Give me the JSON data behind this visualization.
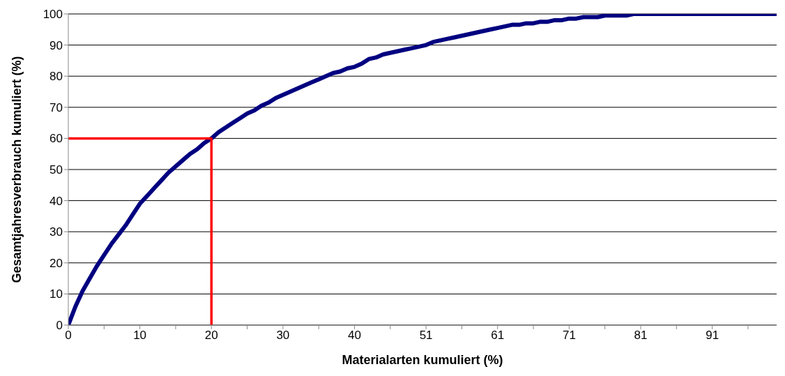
{
  "chart_data": {
    "type": "line",
    "xlabel": "Materialarten kumuliert (%)",
    "ylabel": "Gesamtjahresverbrauch kumuliert (%)",
    "categories": [
      "0",
      null,
      null,
      null,
      null,
      null,
      null,
      null,
      null,
      null,
      "10",
      null,
      null,
      null,
      null,
      null,
      null,
      null,
      null,
      null,
      "20",
      null,
      null,
      null,
      null,
      null,
      null,
      null,
      null,
      null,
      "30",
      null,
      null,
      null,
      null,
      null,
      null,
      null,
      null,
      null,
      "40",
      null,
      null,
      null,
      null,
      null,
      null,
      null,
      null,
      null,
      "51",
      null,
      null,
      null,
      null,
      null,
      null,
      null,
      null,
      null,
      "61",
      null,
      null,
      null,
      null,
      null,
      null,
      null,
      null,
      null,
      "71",
      null,
      null,
      null,
      null,
      null,
      null,
      null,
      null,
      null,
      "81",
      null,
      null,
      null,
      null,
      null,
      null,
      null,
      null,
      null,
      "91",
      null,
      null,
      null,
      null,
      null,
      null,
      null,
      null,
      null
    ],
    "ylim": [
      0,
      100
    ],
    "yticks": [
      0,
      10,
      20,
      30,
      40,
      50,
      60,
      70,
      80,
      90,
      100
    ],
    "grid": "y",
    "marker": "none",
    "line_style": "solid",
    "series": [
      {
        "color": "#000080",
        "values": [
          0,
          6,
          11,
          15,
          19,
          22.5,
          26,
          29,
          32,
          35.5,
          39,
          41.5,
          44,
          46.5,
          49,
          51,
          53,
          55,
          56.5,
          58.5,
          60,
          62,
          63.5,
          65,
          66.5,
          68,
          69,
          70.5,
          71.5,
          73,
          74,
          75,
          76,
          77,
          78,
          79,
          80,
          81,
          81.5,
          82.5,
          83,
          84,
          85.5,
          86,
          87,
          87.5,
          88,
          88.5,
          89,
          89.5,
          90,
          91,
          91.5,
          92,
          92.5,
          93,
          93.5,
          94,
          94.5,
          95,
          95.5,
          96,
          96.5,
          96.5,
          97,
          97,
          97.5,
          97.5,
          98,
          98,
          98.5,
          98.5,
          99,
          99,
          99,
          99.5,
          99.5,
          99.5,
          99.5,
          100,
          100,
          100,
          100,
          100,
          100,
          100,
          100,
          100,
          100,
          100,
          100,
          100,
          100,
          100,
          100,
          100,
          100,
          100,
          100,
          100
        ]
      },
      {
        "color": "#ff0000",
        "x": [
          "0",
          "20",
          "20"
        ],
        "values": [
          60,
          60,
          0
        ]
      }
    ]
  }
}
